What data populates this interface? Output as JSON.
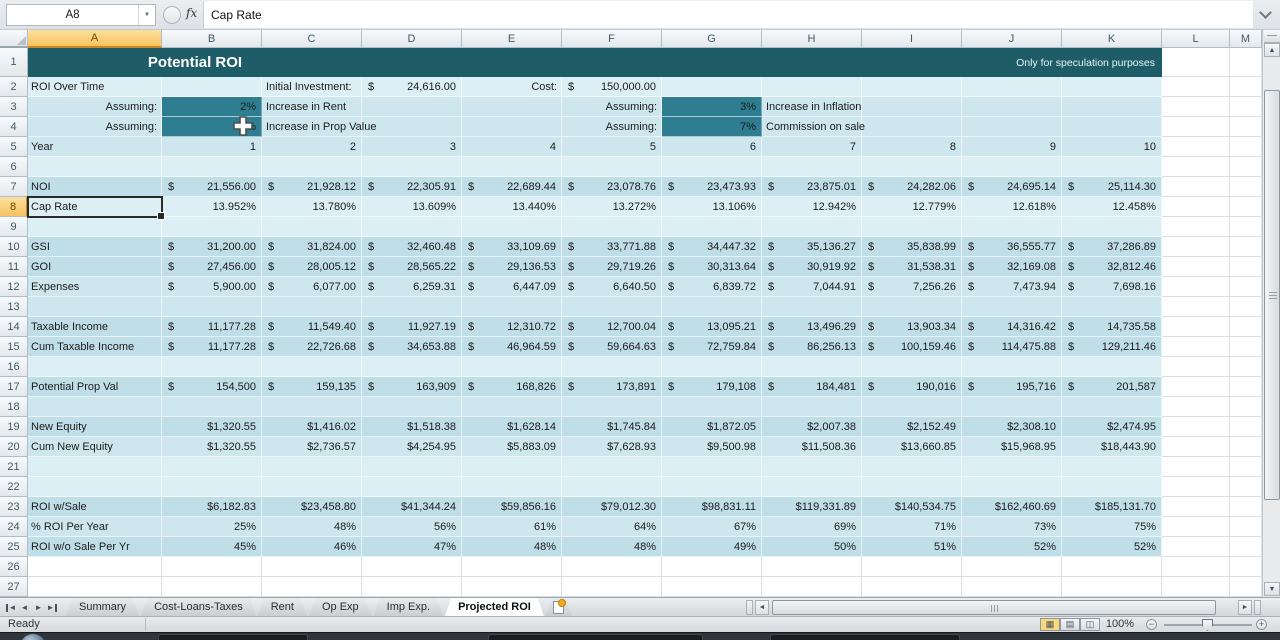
{
  "formula_bar": {
    "name_box": "A8",
    "formula": "Cap Rate"
  },
  "column_headers": [
    "A",
    "B",
    "C",
    "D",
    "E",
    "F",
    "G",
    "H",
    "I",
    "J",
    "K",
    "L",
    "M"
  ],
  "selected": {
    "cell": "A8",
    "column": "A",
    "row": 8
  },
  "sheet": {
    "title": "Potential ROI",
    "note": "Only for speculation purposes",
    "summary_row": {
      "label": "ROI Over Time",
      "init_label": "Initial Investment:",
      "init_currency": "$",
      "init_value": "24,616.00",
      "cost_label": "Cost:",
      "cost_currency": "$",
      "cost_value": "150,000.00"
    },
    "assumptions": [
      {
        "row": 3,
        "side": "left",
        "label": "Assuming:",
        "value": "2%",
        "desc": "Increase in Rent"
      },
      {
        "row": 4,
        "side": "left",
        "label": "Assuming:",
        "value": "%",
        "desc": "Increase in Prop Value",
        "cursor": true
      },
      {
        "row": 3,
        "side": "right",
        "label": "Assuming:",
        "value": "3%",
        "desc": "Increase in Inflation"
      },
      {
        "row": 4,
        "side": "right",
        "label": "Assuming:",
        "value": "7%",
        "desc": "Commission on sale"
      }
    ],
    "data_rows": [
      {
        "row": 5,
        "label": "Year",
        "format": "plain",
        "values": [
          "1",
          "2",
          "3",
          "4",
          "5",
          "6",
          "7",
          "8",
          "9",
          "10"
        ]
      },
      {
        "row": 7,
        "label": "NOI",
        "format": "accounting",
        "values": [
          "21,556.00",
          "21,928.12",
          "22,305.91",
          "22,689.44",
          "23,078.76",
          "23,473.93",
          "23,875.01",
          "24,282.06",
          "24,695.14",
          "25,114.30"
        ]
      },
      {
        "row": 8,
        "label": "Cap Rate",
        "format": "plain",
        "values": [
          "13.952%",
          "13.780%",
          "13.609%",
          "13.440%",
          "13.272%",
          "13.106%",
          "12.942%",
          "12.779%",
          "12.618%",
          "12.458%"
        ]
      },
      {
        "row": 10,
        "label": "GSI",
        "format": "accounting",
        "values": [
          "31,200.00",
          "31,824.00",
          "32,460.48",
          "33,109.69",
          "33,771.88",
          "34,447.32",
          "35,136.27",
          "35,838.99",
          "36,555.77",
          "37,286.89"
        ]
      },
      {
        "row": 11,
        "label": "GOI",
        "format": "accounting",
        "values": [
          "27,456.00",
          "28,005.12",
          "28,565.22",
          "29,136.53",
          "29,719.26",
          "30,313.64",
          "30,919.92",
          "31,538.31",
          "32,169.08",
          "32,812.46"
        ]
      },
      {
        "row": 12,
        "label": "Expenses",
        "format": "accounting",
        "values": [
          "5,900.00",
          "6,077.00",
          "6,259.31",
          "6,447.09",
          "6,640.50",
          "6,839.72",
          "7,044.91",
          "7,256.26",
          "7,473.94",
          "7,698.16"
        ]
      },
      {
        "row": 14,
        "label": "Taxable Income",
        "format": "accounting",
        "values": [
          "11,177.28",
          "11,549.40",
          "11,927.19",
          "12,310.72",
          "12,700.04",
          "13,095.21",
          "13,496.29",
          "13,903.34",
          "14,316.42",
          "14,735.58"
        ]
      },
      {
        "row": 15,
        "label": "Cum Taxable Income",
        "format": "accounting",
        "values": [
          "11,177.28",
          "22,726.68",
          "34,653.88",
          "46,964.59",
          "59,664.63",
          "72,759.84",
          "86,256.13",
          "100,159.46",
          "114,475.88",
          "129,211.46"
        ]
      },
      {
        "row": 17,
        "label": "Potential Prop Val",
        "format": "accounting",
        "values": [
          "154,500",
          "159,135",
          "163,909",
          "168,826",
          "173,891",
          "179,108",
          "184,481",
          "190,016",
          "195,716",
          "201,587"
        ]
      },
      {
        "row": 19,
        "label": "New Equity",
        "format": "plain",
        "values": [
          "$1,320.55",
          "$1,416.02",
          "$1,518.38",
          "$1,628.14",
          "$1,745.84",
          "$1,872.05",
          "$2,007.38",
          "$2,152.49",
          "$2,308.10",
          "$2,474.95"
        ]
      },
      {
        "row": 20,
        "label": "Cum New Equity",
        "format": "plain",
        "values": [
          "$1,320.55",
          "$2,736.57",
          "$4,254.95",
          "$5,883.09",
          "$7,628.93",
          "$9,500.98",
          "$11,508.36",
          "$13,660.85",
          "$15,968.95",
          "$18,443.90"
        ]
      },
      {
        "row": 23,
        "label": "ROI w/Sale",
        "format": "plain",
        "values": [
          "$6,182.83",
          "$23,458.80",
          "$41,344.24",
          "$59,856.16",
          "$79,012.30",
          "$98,831.11",
          "$119,331.89",
          "$140,534.75",
          "$162,460.69",
          "$185,131.70"
        ]
      },
      {
        "row": 24,
        "label": "% ROI Per Year",
        "format": "plain",
        "values": [
          "25%",
          "48%",
          "56%",
          "61%",
          "64%",
          "67%",
          "69%",
          "71%",
          "73%",
          "75%"
        ]
      },
      {
        "row": 25,
        "label": "ROI w/o Sale Per Yr",
        "format": "plain",
        "values": [
          "45%",
          "46%",
          "47%",
          "48%",
          "48%",
          "49%",
          "50%",
          "51%",
          "52%",
          "52%"
        ]
      }
    ]
  },
  "tabs": {
    "items": [
      {
        "label": "Summary",
        "active": false
      },
      {
        "label": "Cost-Loans-Taxes",
        "active": false
      },
      {
        "label": "Rent",
        "active": false
      },
      {
        "label": "Op Exp",
        "active": false
      },
      {
        "label": "Imp Exp.",
        "active": false
      },
      {
        "label": "Projected ROI",
        "active": true
      }
    ]
  },
  "status": {
    "ready": "Ready",
    "zoom": "100%"
  },
  "icons": {
    "name_box_dropdown": "▼",
    "insert_function": "fx",
    "tab_first": "◄",
    "tab_prev": "◄",
    "tab_next": "►",
    "tab_last": "►",
    "scroll_up": "▲",
    "scroll_down": "▼",
    "scroll_left": "◄",
    "scroll_right": "►",
    "view_normal": "▦",
    "view_page_layout": "▤",
    "view_page_break": "◫",
    "zoom_out": "−",
    "zoom_in": "+"
  },
  "colors": {
    "banner": "#1E5D68",
    "accent_cell": "#2E7D90",
    "row_band": "#BFDEE8",
    "row_mid": "#CEE7EE",
    "row_light": "#DCEFF4",
    "selected_header": "#F6C35F"
  }
}
